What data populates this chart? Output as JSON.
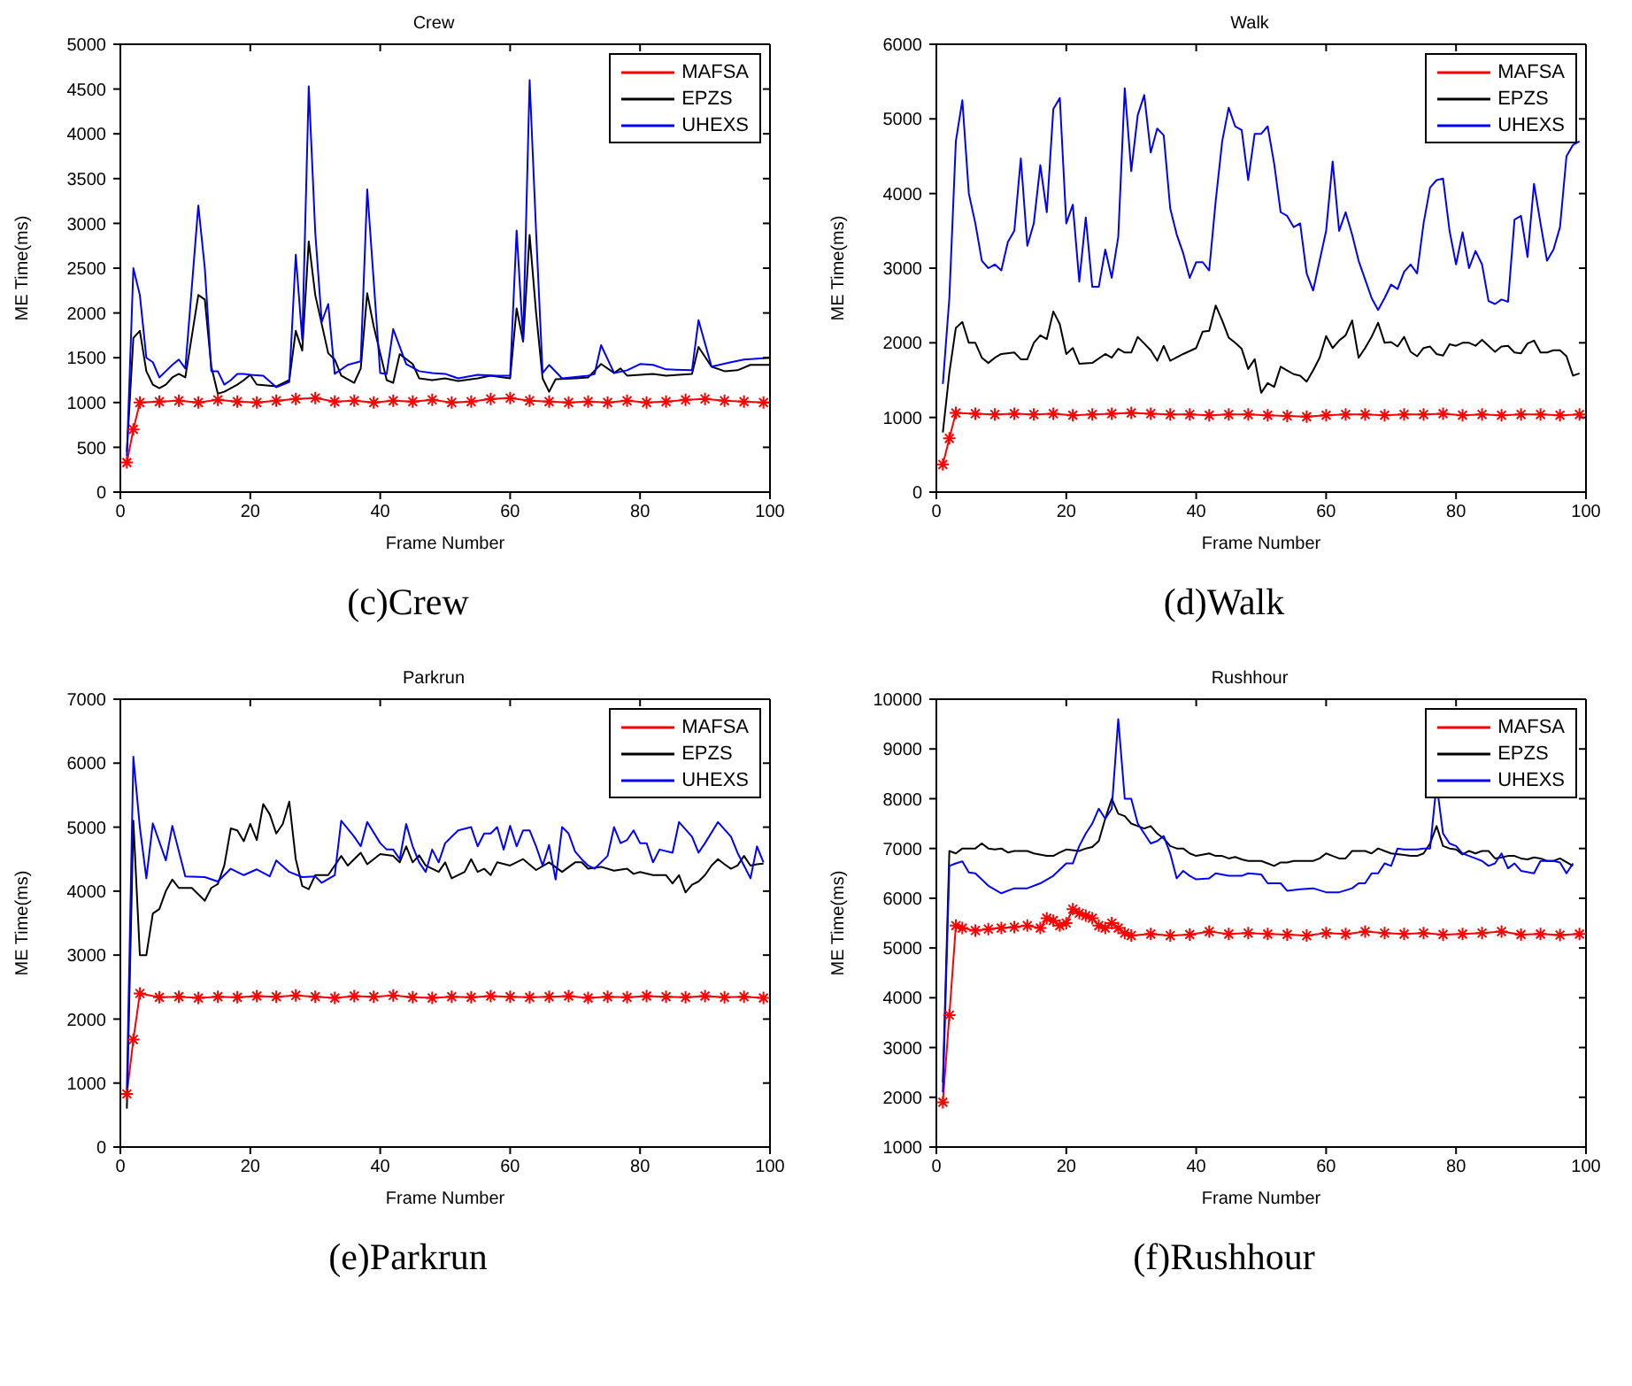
{
  "chart_data": [
    {
      "type": "line",
      "title": "Crew",
      "xlabel": "Frame Number",
      "ylabel": "ME Time(ms)",
      "annotations": [
        "(c)Crew"
      ],
      "xlim": [
        0,
        100
      ],
      "xticks": [
        0,
        20,
        40,
        60,
        80,
        100
      ],
      "ylim": [
        0,
        5000
      ],
      "yticks": [
        0,
        500,
        1000,
        1500,
        2000,
        2500,
        3000,
        3500,
        4000,
        4500,
        5000
      ],
      "legend": "top right",
      "series": [
        {
          "name": "MAFSA",
          "color": "#ff0000",
          "marker": "cross",
          "x": [
            1,
            2,
            3,
            6,
            9,
            12,
            15,
            18,
            21,
            24,
            27,
            30,
            33,
            36,
            39,
            42,
            45,
            48,
            51,
            54,
            57,
            60,
            63,
            66,
            69,
            72,
            75,
            78,
            81,
            84,
            87,
            90,
            93,
            96,
            99
          ],
          "values": [
            330,
            700,
            1000,
            1010,
            1020,
            1000,
            1030,
            1010,
            1000,
            1020,
            1040,
            1050,
            1010,
            1020,
            1000,
            1020,
            1010,
            1030,
            1000,
            1010,
            1040,
            1050,
            1020,
            1010,
            1000,
            1010,
            1000,
            1020,
            1000,
            1010,
            1030,
            1040,
            1020,
            1010,
            1000
          ]
        },
        {
          "name": "EPZS",
          "color": "#000000",
          "marker": "none",
          "x": [
            1,
            2,
            3,
            4,
            5,
            6,
            7,
            8,
            9,
            10,
            12,
            13,
            14,
            15,
            16,
            18,
            19,
            20,
            21,
            24,
            26,
            27,
            28,
            29,
            30,
            32,
            33,
            34,
            36,
            37,
            38,
            39,
            41,
            42,
            43,
            45,
            46,
            48,
            50,
            52,
            55,
            57,
            60,
            61,
            62,
            63,
            64,
            65,
            66,
            67,
            70,
            72,
            74,
            76,
            77,
            78,
            82,
            84,
            86,
            88,
            89,
            91,
            93,
            95,
            97,
            100
          ],
          "values": [
            450,
            1720,
            1800,
            1350,
            1200,
            1160,
            1200,
            1280,
            1320,
            1280,
            2200,
            2150,
            1400,
            1100,
            1120,
            1200,
            1250,
            1310,
            1200,
            1180,
            1250,
            1800,
            1580,
            2800,
            2200,
            1550,
            1480,
            1300,
            1220,
            1380,
            2220,
            1850,
            1250,
            1220,
            1540,
            1430,
            1270,
            1250,
            1270,
            1240,
            1270,
            1300,
            1270,
            2050,
            1680,
            2870,
            2000,
            1270,
            1120,
            1260,
            1270,
            1280,
            1430,
            1330,
            1380,
            1300,
            1320,
            1300,
            1310,
            1320,
            1620,
            1400,
            1350,
            1360,
            1420,
            1420
          ]
        },
        {
          "name": "UHEXS",
          "color": "#0000ff",
          "marker": "none",
          "x": [
            1,
            2,
            3,
            4,
            5,
            6,
            7,
            8,
            9,
            10,
            12,
            13,
            14,
            15,
            16,
            17,
            18,
            19,
            20,
            22,
            24,
            26,
            27,
            28,
            29,
            30,
            31,
            32,
            33,
            35,
            37,
            38,
            40,
            41,
            42,
            44,
            46,
            48,
            50,
            52,
            55,
            58,
            60,
            61,
            62,
            63,
            64,
            65,
            66,
            68,
            72,
            73,
            74,
            76,
            78,
            80,
            82,
            84,
            88,
            89,
            91,
            94,
            96,
            100
          ],
          "values": [
            400,
            2500,
            2200,
            1500,
            1450,
            1280,
            1350,
            1420,
            1480,
            1380,
            3200,
            2500,
            1350,
            1350,
            1200,
            1250,
            1320,
            1320,
            1310,
            1300,
            1170,
            1230,
            2650,
            1700,
            4530,
            2900,
            1900,
            2100,
            1320,
            1420,
            1460,
            3380,
            1330,
            1320,
            1820,
            1430,
            1350,
            1330,
            1320,
            1270,
            1310,
            1300,
            1300,
            2920,
            1700,
            4600,
            2900,
            1330,
            1420,
            1270,
            1300,
            1320,
            1640,
            1330,
            1360,
            1430,
            1420,
            1370,
            1360,
            1920,
            1400,
            1450,
            1480,
            1500
          ]
        }
      ]
    },
    {
      "type": "line",
      "title": "Walk",
      "xlabel": "Frame Number",
      "ylabel": "ME Time(ms)",
      "annotations": [
        "(d)Walk"
      ],
      "xlim": [
        0,
        100
      ],
      "xticks": [
        0,
        20,
        40,
        60,
        80,
        100
      ],
      "ylim": [
        0,
        6000
      ],
      "yticks": [
        0,
        1000,
        2000,
        3000,
        4000,
        5000,
        6000
      ],
      "legend": "top right",
      "series": [
        {
          "name": "MAFSA",
          "color": "#ff0000",
          "marker": "cross",
          "x": [
            1,
            2,
            3,
            6,
            9,
            12,
            15,
            18,
            21,
            24,
            27,
            30,
            33,
            36,
            39,
            42,
            45,
            48,
            51,
            54,
            57,
            60,
            63,
            66,
            69,
            72,
            75,
            78,
            81,
            84,
            87,
            90,
            93,
            96,
            99
          ],
          "values": [
            370,
            720,
            1060,
            1050,
            1040,
            1050,
            1040,
            1050,
            1030,
            1040,
            1050,
            1060,
            1050,
            1040,
            1040,
            1030,
            1040,
            1040,
            1030,
            1020,
            1010,
            1030,
            1040,
            1040,
            1030,
            1040,
            1040,
            1050,
            1030,
            1040,
            1030,
            1040,
            1040,
            1030,
            1040
          ]
        },
        {
          "name": "EPZS",
          "color": "#000000",
          "marker": "none",
          "x": [
            1,
            2,
            3,
            4,
            5,
            6,
            7,
            8,
            9,
            10,
            12,
            13,
            14,
            15,
            16,
            17,
            18,
            19,
            20,
            21,
            22,
            24,
            26,
            27,
            28,
            29,
            30,
            31,
            32,
            33,
            34,
            35,
            36,
            38,
            40,
            41,
            42,
            43,
            44,
            45,
            46,
            47,
            48,
            49,
            50,
            51,
            52,
            53,
            54,
            55,
            56,
            57,
            58,
            59,
            60,
            61,
            62,
            63,
            64,
            65,
            66,
            67,
            68,
            69,
            70,
            71,
            72,
            73,
            74,
            75,
            76,
            77,
            78,
            79,
            80,
            81,
            82,
            83,
            84,
            85,
            86,
            87,
            88,
            89,
            90,
            91,
            92,
            93,
            94,
            95,
            96,
            97,
            98,
            99
          ],
          "values": [
            800,
            1600,
            2200,
            2280,
            2000,
            2000,
            1800,
            1730,
            1800,
            1850,
            1870,
            1780,
            1780,
            2000,
            2100,
            2050,
            2420,
            2250,
            1850,
            1930,
            1720,
            1730,
            1850,
            1800,
            1920,
            1870,
            1870,
            2080,
            1990,
            1900,
            1760,
            1960,
            1760,
            1850,
            1930,
            2150,
            2160,
            2500,
            2300,
            2070,
            2000,
            1920,
            1650,
            1780,
            1330,
            1460,
            1410,
            1680,
            1630,
            1580,
            1560,
            1480,
            1630,
            1800,
            2090,
            1930,
            2030,
            2100,
            2300,
            1800,
            1930,
            2080,
            2270,
            2000,
            2010,
            1950,
            2080,
            1880,
            1820,
            1930,
            1950,
            1850,
            1830,
            1980,
            1960,
            2000,
            2000,
            1960,
            2040,
            1960,
            1880,
            1950,
            1960,
            1870,
            1860,
            1990,
            2030,
            1870,
            1870,
            1900,
            1900,
            1820,
            1560,
            1590
          ]
        },
        {
          "name": "UHEXS",
          "color": "#0000ff",
          "marker": "none",
          "x": [
            1,
            2,
            3,
            4,
            5,
            6,
            7,
            8,
            9,
            10,
            11,
            12,
            13,
            14,
            15,
            16,
            17,
            18,
            19,
            20,
            21,
            22,
            23,
            24,
            25,
            26,
            27,
            28,
            29,
            30,
            31,
            32,
            33,
            34,
            35,
            36,
            37,
            38,
            39,
            40,
            41,
            42,
            43,
            44,
            45,
            46,
            47,
            48,
            49,
            50,
            51,
            52,
            53,
            54,
            55,
            56,
            57,
            58,
            59,
            60,
            61,
            62,
            63,
            64,
            65,
            66,
            67,
            68,
            69,
            70,
            71,
            72,
            73,
            74,
            75,
            76,
            77,
            78,
            79,
            80,
            81,
            82,
            83,
            84,
            85,
            86,
            87,
            88,
            89,
            90,
            91,
            92,
            93,
            94,
            95,
            96,
            97,
            98,
            99
          ],
          "values": [
            1450,
            2600,
            4700,
            5250,
            4000,
            3600,
            3100,
            3000,
            3050,
            2970,
            3350,
            3500,
            4470,
            3300,
            3600,
            4380,
            3750,
            5130,
            5280,
            3600,
            3850,
            2820,
            3680,
            2750,
            2750,
            3250,
            2870,
            3420,
            5410,
            4300,
            5050,
            5320,
            4550,
            4870,
            4780,
            3800,
            3450,
            3200,
            2870,
            3080,
            3080,
            2970,
            3900,
            4700,
            5150,
            4900,
            4850,
            4180,
            4800,
            4800,
            4900,
            4400,
            3750,
            3700,
            3550,
            3600,
            2930,
            2700,
            3100,
            3500,
            4430,
            3500,
            3750,
            3450,
            3100,
            2850,
            2600,
            2440,
            2600,
            2780,
            2720,
            2950,
            3050,
            2930,
            3600,
            4080,
            4180,
            4200,
            3500,
            3050,
            3480,
            3000,
            3230,
            3050,
            2560,
            2520,
            2580,
            2550,
            3650,
            3700,
            3150,
            4130,
            3600,
            3100,
            3250,
            3550,
            4500,
            4650,
            4700
          ]
        }
      ]
    },
    {
      "type": "line",
      "title": "Parkrun",
      "xlabel": "Frame Number",
      "ylabel": "ME Time(ms)",
      "annotations": [
        "(e)Parkrun"
      ],
      "xlim": [
        0,
        100
      ],
      "xticks": [
        0,
        20,
        40,
        60,
        80,
        100
      ],
      "ylim": [
        0,
        7000
      ],
      "yticks": [
        0,
        1000,
        2000,
        3000,
        4000,
        5000,
        6000,
        7000
      ],
      "legend": "top right",
      "series": [
        {
          "name": "MAFSA",
          "color": "#ff0000",
          "marker": "cross",
          "x": [
            1,
            2,
            3,
            6,
            9,
            12,
            15,
            18,
            21,
            24,
            27,
            30,
            33,
            36,
            39,
            42,
            45,
            48,
            51,
            54,
            57,
            60,
            63,
            66,
            69,
            72,
            75,
            78,
            81,
            84,
            87,
            90,
            93,
            96,
            99
          ],
          "values": [
            830,
            1680,
            2400,
            2340,
            2350,
            2330,
            2350,
            2340,
            2360,
            2350,
            2370,
            2350,
            2330,
            2360,
            2350,
            2370,
            2340,
            2330,
            2350,
            2340,
            2360,
            2350,
            2340,
            2350,
            2360,
            2330,
            2350,
            2340,
            2360,
            2350,
            2340,
            2360,
            2340,
            2350,
            2330
          ]
        },
        {
          "name": "EPZS",
          "color": "#000000",
          "marker": "none",
          "x": [
            1,
            2,
            3,
            4,
            5,
            6,
            7,
            8,
            9,
            11,
            13,
            14,
            15,
            16,
            17,
            18,
            19,
            20,
            21,
            22,
            23,
            24,
            25,
            26,
            27,
            28,
            29,
            30,
            32,
            34,
            35,
            37,
            38,
            40,
            42,
            43,
            44,
            45,
            46,
            47,
            49,
            50,
            51,
            53,
            54,
            55,
            56,
            57,
            58,
            60,
            62,
            64,
            66,
            68,
            70,
            71,
            72,
            74,
            76,
            78,
            79,
            80,
            82,
            84,
            85,
            86,
            87,
            88,
            89,
            90,
            91,
            92,
            93,
            94,
            95,
            96,
            97,
            98,
            99
          ],
          "values": [
            600,
            5100,
            3000,
            3000,
            3650,
            3720,
            4000,
            4180,
            4050,
            4050,
            3850,
            4050,
            4110,
            4400,
            4980,
            4950,
            4780,
            5050,
            4800,
            5360,
            5200,
            4900,
            5050,
            5400,
            4500,
            4080,
            4030,
            4250,
            4250,
            4550,
            4400,
            4600,
            4420,
            4580,
            4550,
            4450,
            4700,
            4450,
            4560,
            4400,
            4300,
            4450,
            4200,
            4300,
            4500,
            4300,
            4350,
            4250,
            4450,
            4400,
            4500,
            4330,
            4450,
            4300,
            4450,
            4450,
            4350,
            4380,
            4320,
            4350,
            4270,
            4300,
            4250,
            4250,
            4120,
            4250,
            3980,
            4100,
            4150,
            4250,
            4400,
            4500,
            4420,
            4350,
            4400,
            4550,
            4400,
            4420,
            4430
          ]
        },
        {
          "name": "UHEXS",
          "color": "#0000ff",
          "marker": "none",
          "x": [
            1,
            2,
            3,
            4,
            5,
            7,
            8,
            10,
            13,
            15,
            17,
            19,
            21,
            23,
            24,
            26,
            28,
            30,
            31,
            33,
            34,
            36,
            37,
            38,
            40,
            41,
            42,
            43,
            44,
            45,
            46,
            47,
            48,
            49,
            50,
            52,
            54,
            55,
            56,
            57,
            58,
            59,
            60,
            61,
            62,
            63,
            64,
            65,
            66,
            67,
            68,
            69,
            70,
            71,
            72,
            73,
            75,
            76,
            77,
            78,
            79,
            80,
            81,
            82,
            83,
            85,
            86,
            88,
            89,
            90,
            92,
            94,
            95,
            96,
            97,
            98,
            99
          ],
          "values": [
            900,
            6100,
            5000,
            4200,
            5060,
            4480,
            5020,
            4230,
            4220,
            4150,
            4350,
            4250,
            4340,
            4230,
            4480,
            4300,
            4220,
            4230,
            4130,
            4250,
            5100,
            4850,
            4700,
            5080,
            4750,
            4650,
            4650,
            4500,
            5050,
            4700,
            4450,
            4300,
            4650,
            4450,
            4750,
            4950,
            5000,
            4700,
            4900,
            4900,
            5000,
            4650,
            5020,
            4700,
            4950,
            4950,
            4700,
            4400,
            4720,
            4180,
            5000,
            4900,
            4620,
            4500,
            4400,
            4350,
            4550,
            5000,
            4750,
            4800,
            4950,
            4750,
            4750,
            4450,
            4650,
            4600,
            5080,
            4850,
            4600,
            4750,
            5080,
            4850,
            4600,
            4400,
            4200,
            4700,
            4450
          ]
        }
      ]
    },
    {
      "type": "line",
      "title": "Rushhour",
      "xlabel": "Frame Number",
      "ylabel": "ME Time(ms)",
      "annotations": [
        "(f)Rushhour"
      ],
      "xlim": [
        0,
        100
      ],
      "xticks": [
        0,
        20,
        40,
        60,
        80,
        100
      ],
      "ylim": [
        1000,
        10000
      ],
      "yticks": [
        1000,
        2000,
        3000,
        4000,
        5000,
        6000,
        7000,
        8000,
        9000,
        10000
      ],
      "legend": "top right",
      "series": [
        {
          "name": "MAFSA",
          "color": "#ff0000",
          "marker": "cross",
          "x": [
            1,
            2,
            3,
            4,
            6,
            8,
            10,
            12,
            14,
            16,
            17,
            18,
            19,
            20,
            21,
            22,
            23,
            24,
            25,
            26,
            27,
            28,
            29,
            30,
            33,
            36,
            39,
            42,
            45,
            48,
            51,
            54,
            57,
            60,
            63,
            66,
            69,
            72,
            75,
            78,
            81,
            84,
            87,
            90,
            93,
            96,
            99
          ],
          "values": [
            1900,
            3650,
            5450,
            5400,
            5350,
            5380,
            5400,
            5420,
            5450,
            5400,
            5600,
            5550,
            5450,
            5500,
            5780,
            5700,
            5650,
            5600,
            5450,
            5400,
            5500,
            5400,
            5300,
            5250,
            5280,
            5250,
            5270,
            5330,
            5280,
            5300,
            5280,
            5270,
            5250,
            5300,
            5280,
            5330,
            5300,
            5280,
            5300,
            5270,
            5280,
            5300,
            5330,
            5270,
            5280,
            5260,
            5280
          ]
        },
        {
          "name": "EPZS",
          "color": "#000000",
          "marker": "none",
          "x": [
            1,
            2,
            3,
            4,
            6,
            7,
            8,
            9,
            10,
            11,
            12,
            14,
            15,
            17,
            18,
            19,
            20,
            22,
            23,
            24,
            25,
            26,
            27,
            28,
            29,
            30,
            31,
            32,
            33,
            34,
            35,
            36,
            37,
            38,
            39,
            40,
            42,
            43,
            44,
            45,
            46,
            47,
            48,
            50,
            51,
            52,
            53,
            54,
            55,
            57,
            58,
            59,
            60,
            61,
            62,
            63,
            64,
            66,
            67,
            68,
            69,
            70,
            72,
            73,
            74,
            75,
            76,
            77,
            78,
            79,
            80,
            81,
            82,
            83,
            84,
            85,
            86,
            87,
            88,
            89,
            90,
            91,
            92,
            93,
            94,
            95,
            96,
            98
          ],
          "values": [
            2300,
            6950,
            6900,
            7000,
            7000,
            7100,
            7000,
            6980,
            7000,
            6920,
            6950,
            6950,
            6900,
            6850,
            6850,
            6920,
            6980,
            6950,
            7000,
            7030,
            7150,
            7600,
            8000,
            7700,
            7650,
            7500,
            7450,
            7400,
            7450,
            7300,
            7200,
            7050,
            7000,
            7000,
            6900,
            6850,
            6900,
            6850,
            6850,
            6800,
            6830,
            6780,
            6750,
            6750,
            6700,
            6650,
            6720,
            6720,
            6750,
            6750,
            6750,
            6800,
            6900,
            6850,
            6800,
            6800,
            6950,
            6950,
            6900,
            7000,
            6950,
            6900,
            6870,
            6850,
            6850,
            6900,
            7100,
            7450,
            7050,
            7000,
            6980,
            6880,
            6950,
            6900,
            6950,
            6950,
            6800,
            6820,
            6850,
            6850,
            6800,
            6780,
            6820,
            6800,
            6750,
            6750,
            6800,
            6650
          ]
        },
        {
          "name": "UHEXS",
          "color": "#0000ff",
          "marker": "none",
          "x": [
            1,
            2,
            3,
            4,
            5,
            6,
            8,
            10,
            12,
            14,
            16,
            18,
            20,
            21,
            22,
            23,
            24,
            25,
            26,
            27,
            28,
            29,
            30,
            31,
            32,
            33,
            34,
            35,
            36,
            37,
            38,
            39,
            40,
            42,
            43,
            45,
            47,
            48,
            50,
            51,
            53,
            54,
            56,
            58,
            60,
            62,
            64,
            65,
            66,
            67,
            68,
            69,
            70,
            71,
            72,
            74,
            75,
            76,
            77,
            78,
            79,
            80,
            81,
            82,
            83,
            84,
            85,
            86,
            87,
            88,
            89,
            90,
            92,
            93,
            95,
            96,
            97,
            98
          ],
          "values": [
            2100,
            6650,
            6700,
            6740,
            6520,
            6500,
            6250,
            6100,
            6200,
            6200,
            6300,
            6450,
            6700,
            6700,
            7050,
            7300,
            7500,
            7800,
            7600,
            7800,
            9600,
            8000,
            8000,
            7500,
            7300,
            7100,
            7150,
            7250,
            6900,
            6400,
            6550,
            6450,
            6380,
            6400,
            6500,
            6450,
            6450,
            6500,
            6480,
            6300,
            6300,
            6150,
            6180,
            6200,
            6120,
            6120,
            6200,
            6300,
            6300,
            6500,
            6500,
            6700,
            6650,
            7000,
            6980,
            6980,
            7000,
            7000,
            8300,
            7300,
            7100,
            7050,
            6900,
            6850,
            6800,
            6750,
            6650,
            6700,
            6900,
            6600,
            6700,
            6550,
            6500,
            6750,
            6750,
            6720,
            6500,
            6700
          ]
        }
      ]
    }
  ]
}
